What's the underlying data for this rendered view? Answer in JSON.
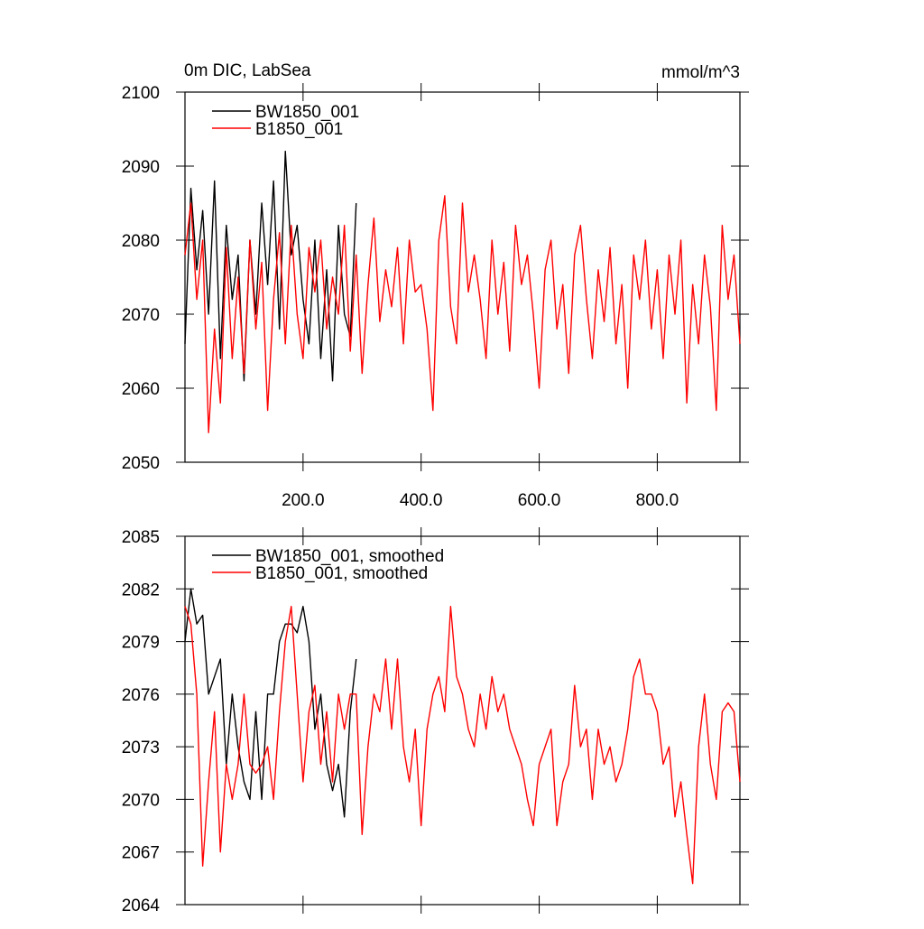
{
  "chart_data": [
    {
      "type": "line",
      "title": "0m DIC, LabSea",
      "units": "mmol/m^3",
      "legend": "upper left",
      "xlim": [
        0,
        940
      ],
      "ylim": [
        2050,
        2100
      ],
      "xticks": [
        {
          "value": 200,
          "label": "200.0"
        },
        {
          "value": 400,
          "label": "400.0"
        },
        {
          "value": 600,
          "label": "600.0"
        },
        {
          "value": 800,
          "label": "800.0"
        }
      ],
      "yticks": [
        2050,
        2060,
        2070,
        2080,
        2090,
        2100
      ],
      "series": [
        {
          "name": "BW1850_001",
          "color": "#000000",
          "x": [
            0,
            10,
            20,
            30,
            40,
            50,
            60,
            70,
            80,
            90,
            100,
            110,
            120,
            130,
            140,
            150,
            160,
            170,
            180,
            190,
            200,
            210,
            220,
            230,
            240,
            250,
            260,
            270,
            280,
            290
          ],
          "values": [
            2066,
            2087,
            2076,
            2084,
            2070,
            2088,
            2064,
            2082,
            2072,
            2078,
            2061,
            2080,
            2070,
            2085,
            2074,
            2088,
            2068,
            2092,
            2078,
            2082,
            2072,
            2066,
            2080,
            2064,
            2076,
            2061,
            2082,
            2070,
            2067,
            2085
          ]
        },
        {
          "name": "B1850_001",
          "color": "#ff0000",
          "x": [
            0,
            10,
            20,
            30,
            40,
            50,
            60,
            70,
            80,
            90,
            100,
            110,
            120,
            130,
            140,
            150,
            160,
            170,
            180,
            190,
            200,
            210,
            220,
            230,
            240,
            250,
            260,
            270,
            280,
            290,
            300,
            310,
            320,
            330,
            340,
            350,
            360,
            370,
            380,
            390,
            400,
            410,
            420,
            430,
            440,
            450,
            460,
            470,
            480,
            490,
            500,
            510,
            520,
            530,
            540,
            550,
            560,
            570,
            580,
            590,
            600,
            610,
            620,
            630,
            640,
            650,
            660,
            670,
            680,
            690,
            700,
            710,
            720,
            730,
            740,
            750,
            760,
            770,
            780,
            790,
            800,
            810,
            820,
            830,
            840,
            850,
            860,
            870,
            880,
            890,
            900,
            910,
            920,
            930,
            940
          ],
          "values": [
            2078,
            2085,
            2072,
            2080,
            2054,
            2068,
            2058,
            2079,
            2064,
            2075,
            2062,
            2080,
            2068,
            2077,
            2057,
            2072,
            2081,
            2066,
            2082,
            2070,
            2064,
            2079,
            2073,
            2080,
            2068,
            2075,
            2070,
            2082,
            2065,
            2078,
            2062,
            2074,
            2083,
            2069,
            2076,
            2071,
            2079,
            2066,
            2080,
            2073,
            2074,
            2068,
            2057,
            2080,
            2086,
            2071,
            2066,
            2085,
            2073,
            2078,
            2072,
            2064,
            2080,
            2070,
            2077,
            2065,
            2082,
            2074,
            2078,
            2070,
            2060,
            2076,
            2080,
            2068,
            2074,
            2062,
            2078,
            2082,
            2072,
            2064,
            2076,
            2069,
            2079,
            2066,
            2074,
            2060,
            2078,
            2072,
            2080,
            2068,
            2076,
            2064,
            2078,
            2070,
            2080,
            2058,
            2074,
            2066,
            2078,
            2071,
            2057,
            2082,
            2072,
            2078,
            2066
          ]
        }
      ]
    },
    {
      "type": "line",
      "legend": "upper left",
      "show_xtick_labels": false,
      "xlim": [
        0,
        940
      ],
      "ylim": [
        2064,
        2085
      ],
      "xticks": [
        200,
        400,
        600,
        800
      ],
      "yticks": [
        2064,
        2067,
        2070,
        2073,
        2076,
        2079,
        2082,
        2085
      ],
      "series": [
        {
          "name": "BW1850_001, smoothed",
          "color": "#000000",
          "x": [
            0,
            10,
            20,
            30,
            40,
            50,
            60,
            70,
            80,
            90,
            100,
            110,
            120,
            130,
            140,
            150,
            160,
            170,
            180,
            190,
            200,
            210,
            220,
            230,
            240,
            250,
            260,
            270,
            280,
            290
          ],
          "values": [
            2079,
            2082,
            2080,
            2080.5,
            2076,
            2077,
            2078,
            2072,
            2076,
            2073,
            2071,
            2070,
            2075,
            2070,
            2076,
            2076,
            2079,
            2080,
            2080,
            2079.5,
            2081,
            2079,
            2074,
            2076,
            2072,
            2070.5,
            2072,
            2069,
            2075,
            2078
          ]
        },
        {
          "name": "B1850_001, smoothed",
          "color": "#ff0000",
          "x": [
            0,
            10,
            20,
            30,
            40,
            50,
            60,
            70,
            80,
            90,
            100,
            110,
            120,
            130,
            140,
            150,
            160,
            170,
            180,
            190,
            200,
            210,
            220,
            230,
            240,
            250,
            260,
            270,
            280,
            290,
            300,
            310,
            320,
            330,
            340,
            350,
            360,
            370,
            380,
            390,
            400,
            410,
            420,
            430,
            440,
            450,
            460,
            470,
            480,
            490,
            500,
            510,
            520,
            530,
            540,
            550,
            560,
            570,
            580,
            590,
            600,
            610,
            620,
            630,
            640,
            650,
            660,
            670,
            680,
            690,
            700,
            710,
            720,
            730,
            740,
            750,
            760,
            770,
            780,
            790,
            800,
            810,
            820,
            830,
            840,
            850,
            860,
            870,
            880,
            890,
            900,
            910,
            920,
            930,
            940
          ],
          "values": [
            2081,
            2080,
            2076,
            2066.2,
            2071,
            2075,
            2067,
            2072,
            2070,
            2072,
            2076,
            2072,
            2071.5,
            2072,
            2073,
            2070,
            2075,
            2079,
            2081,
            2076,
            2071,
            2075,
            2076.5,
            2072,
            2075,
            2071,
            2076,
            2074,
            2076,
            2076,
            2068,
            2073,
            2076,
            2075,
            2078,
            2074,
            2078,
            2073,
            2071,
            2074,
            2068.5,
            2074,
            2076,
            2077,
            2075,
            2081,
            2077,
            2076,
            2074,
            2073,
            2076,
            2074,
            2077,
            2075,
            2076,
            2074,
            2073,
            2072,
            2070,
            2068.5,
            2072,
            2073,
            2074,
            2068.5,
            2071,
            2072,
            2076.5,
            2073,
            2074,
            2070,
            2074,
            2072,
            2073,
            2071,
            2072,
            2074,
            2077,
            2078,
            2076,
            2076,
            2075,
            2072,
            2073,
            2069,
            2071,
            2068,
            2065.2,
            2073,
            2076,
            2072,
            2070,
            2075,
            2075.5,
            2075,
            2071
          ]
        }
      ]
    }
  ]
}
